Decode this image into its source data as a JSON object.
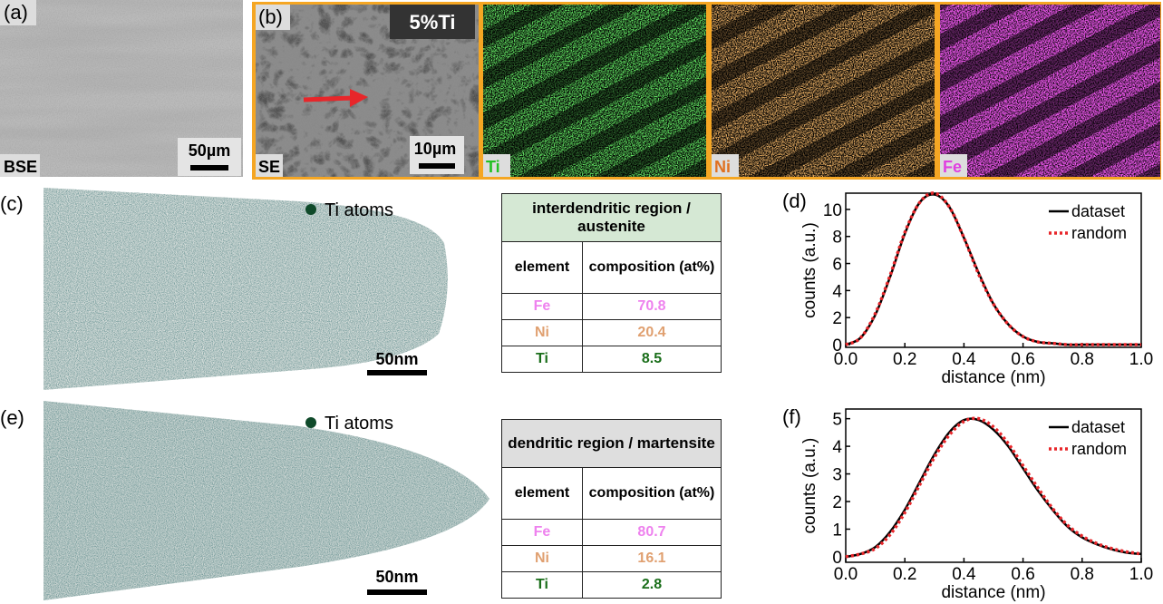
{
  "panels": {
    "a": {
      "label": "(a)",
      "tag": "BSE",
      "scale_bar": "50µm"
    },
    "b": {
      "label": "(b)",
      "title": "5%Ti",
      "maps": [
        "SE",
        "Ti",
        "Ni",
        "Fe"
      ],
      "scale_bar": "10µm"
    },
    "c": {
      "label": "(c)",
      "legend": "Ti atoms",
      "scale_bar": "50nm"
    },
    "e": {
      "label": "(e)",
      "legend": "Ti atoms",
      "scale_bar": "50nm"
    }
  },
  "tables": [
    {
      "title": "interdendritic region / austenite",
      "header": [
        "element",
        "composition (at%)"
      ],
      "rows": [
        [
          "Fe",
          70.8
        ],
        [
          "Ni",
          20.4
        ],
        [
          "Ti",
          8.5
        ]
      ]
    },
    {
      "title": "dendritic region / martensite",
      "header": [
        "element",
        "composition (at%)"
      ],
      "rows": [
        [
          "Fe",
          80.7
        ],
        [
          "Ni",
          16.1
        ],
        [
          "Ti",
          2.8
        ]
      ]
    }
  ],
  "chart_data": [
    {
      "type": "line",
      "label": "(d)",
      "x_label": "distance (nm)",
      "y_label": "counts (a.u.)",
      "x": [
        0,
        0.05,
        0.1,
        0.15,
        0.2,
        0.25,
        0.3,
        0.35,
        0.4,
        0.45,
        0.5,
        0.55,
        0.6,
        0.65,
        0.7,
        0.75,
        0.8,
        0.85,
        0.9,
        0.95,
        1.0
      ],
      "xlim": [
        0,
        1
      ],
      "ylim": [
        -0.2,
        11.2
      ],
      "xticks": [
        {
          "value": 0,
          "label": "0.0"
        },
        {
          "value": 0.2,
          "label": "0.2"
        },
        {
          "value": 0.4,
          "label": "0.4"
        },
        {
          "value": 0.6,
          "label": "0.6"
        },
        {
          "value": 0.8,
          "label": "0.8"
        },
        {
          "value": 1,
          "label": "1.0"
        }
      ],
      "yticks": [
        0,
        2,
        4,
        6,
        8,
        10
      ],
      "series": [
        {
          "name": "dataset",
          "color": "#000000",
          "style": "solid",
          "values": [
            0,
            0.5,
            2.2,
            5.0,
            8.2,
            10.5,
            11.1,
            10.2,
            7.9,
            5.3,
            3.0,
            1.5,
            0.6,
            0.2,
            0.1,
            0,
            0,
            0,
            0,
            0,
            0
          ]
        },
        {
          "name": "random",
          "color": "#e8262a",
          "style": "dotted",
          "values": [
            0,
            0.5,
            2.3,
            5.1,
            8.3,
            10.5,
            11.2,
            10.2,
            7.9,
            5.2,
            3.0,
            1.5,
            0.6,
            0.2,
            0.1,
            0,
            0,
            0,
            0,
            0,
            0
          ]
        }
      ]
    },
    {
      "type": "line",
      "label": "(f)",
      "x_label": "distance (nm)",
      "y_label": "counts (a.u.)",
      "x": [
        0,
        0.05,
        0.1,
        0.15,
        0.2,
        0.25,
        0.3,
        0.35,
        0.4,
        0.45,
        0.5,
        0.55,
        0.6,
        0.65,
        0.7,
        0.75,
        0.8,
        0.85,
        0.9,
        0.95,
        1.0
      ],
      "xlim": [
        0,
        1
      ],
      "ylim": [
        -0.2,
        5.35
      ],
      "xticks": [
        {
          "value": 0,
          "label": "0.0"
        },
        {
          "value": 0.2,
          "label": "0.2"
        },
        {
          "value": 0.4,
          "label": "0.4"
        },
        {
          "value": 0.6,
          "label": "0.6"
        },
        {
          "value": 0.8,
          "label": "0.8"
        },
        {
          "value": 1,
          "label": "1.0"
        }
      ],
      "yticks": [
        0,
        1,
        2,
        3,
        4,
        5
      ],
      "series": [
        {
          "name": "dataset",
          "color": "#000000",
          "style": "solid",
          "values": [
            0,
            0.1,
            0.35,
            0.9,
            1.7,
            2.7,
            3.7,
            4.5,
            4.95,
            4.95,
            4.6,
            4.0,
            3.2,
            2.4,
            1.7,
            1.1,
            0.7,
            0.45,
            0.27,
            0.15,
            0.1
          ]
        },
        {
          "name": "random",
          "color": "#e8262a",
          "style": "dotted",
          "values": [
            0,
            0.1,
            0.3,
            0.8,
            1.6,
            2.6,
            3.6,
            4.4,
            4.9,
            5.0,
            4.7,
            4.1,
            3.3,
            2.5,
            1.75,
            1.15,
            0.75,
            0.48,
            0.3,
            0.18,
            0.1
          ]
        }
      ]
    }
  ]
}
